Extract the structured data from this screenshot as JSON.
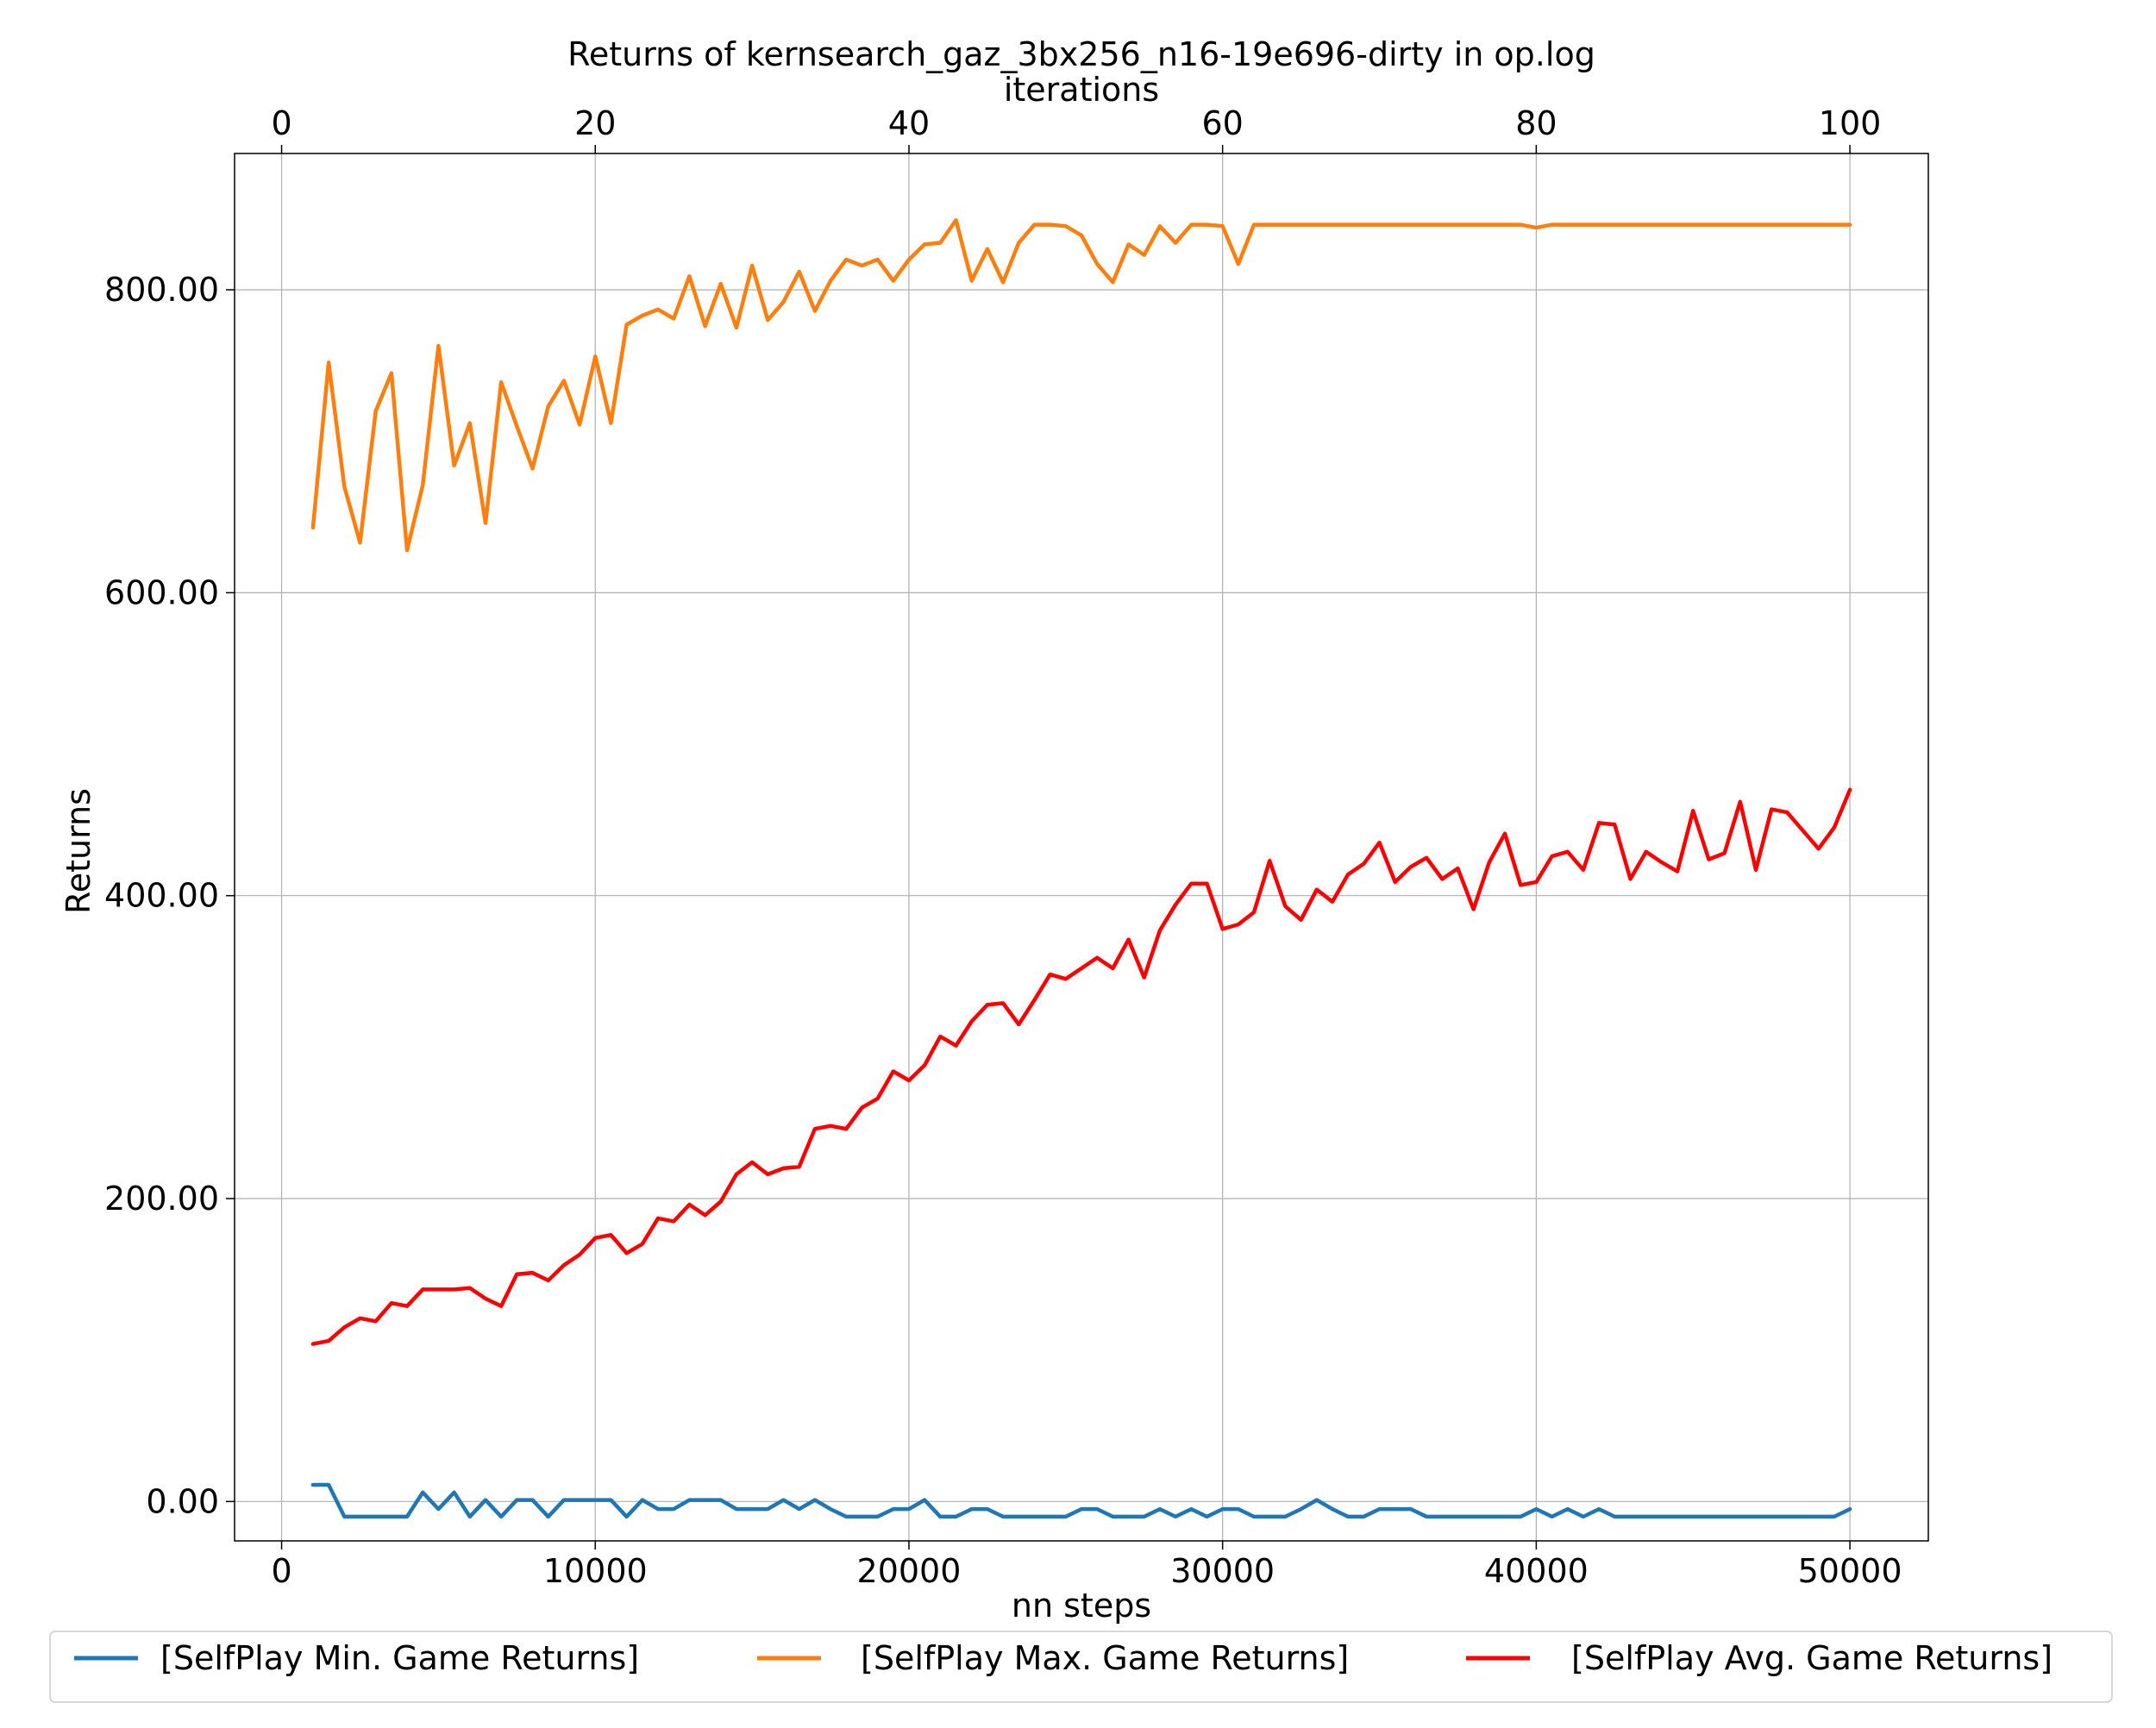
{
  "chart_data": {
    "type": "line",
    "title": "Returns of kernsearch_gaz_3bx256_n16-19e696-dirty in op.log",
    "xlabel": "nn steps",
    "x2label": "iterations",
    "ylabel": "Returns",
    "xlim": [
      -1500,
      52500
    ],
    "x2lim": [
      -3,
      105
    ],
    "ylim": [
      -26,
      890
    ],
    "xticks": [
      0,
      10000,
      20000,
      30000,
      40000,
      50000
    ],
    "x2ticks": [
      0,
      20,
      40,
      60,
      80,
      100
    ],
    "yticks": [
      0,
      200,
      400,
      600,
      800
    ],
    "ytick_labels": [
      "0.00",
      "200.00",
      "400.00",
      "600.00",
      "800.00"
    ],
    "grid": true,
    "legend_position": "bottom, below plot, horizontal",
    "x": [
      1000,
      1500,
      2000,
      2500,
      3000,
      3500,
      4000,
      4500,
      5000,
      5500,
      6000,
      6500,
      7000,
      7500,
      8000,
      8500,
      9000,
      9500,
      10000,
      10500,
      11000,
      11500,
      12000,
      12500,
      13000,
      13500,
      14000,
      14500,
      15000,
      15500,
      16000,
      16500,
      17000,
      17500,
      18000,
      18500,
      19000,
      19500,
      20000,
      20500,
      21000,
      21500,
      22000,
      22500,
      23000,
      23500,
      24000,
      24500,
      25000,
      25500,
      26000,
      26500,
      27000,
      27500,
      28000,
      28500,
      29000,
      29500,
      30000,
      30500,
      31000,
      31500,
      32000,
      32500,
      33000,
      33500,
      34000,
      34500,
      35000,
      35500,
      36000,
      36500,
      37000,
      37500,
      38000,
      38500,
      39000,
      39500,
      40000,
      40500,
      41000,
      41500,
      42000,
      42500,
      43000,
      43500,
      44000,
      44500,
      45000,
      45500,
      46000,
      46500,
      47000,
      47500,
      48000,
      48500,
      49000,
      49500,
      50000
    ],
    "series": [
      {
        "name": "[SelfPlay Min. Game Returns]",
        "color": "#1f77b4",
        "values": [
          11,
          11,
          -10,
          -10,
          -10,
          -10,
          -10,
          6,
          -5,
          6,
          -10,
          1,
          -10,
          1,
          1,
          -10,
          1,
          1,
          1,
          1,
          -10,
          1,
          -5,
          -5,
          1,
          1,
          1,
          -5,
          -5,
          -5,
          1,
          -5,
          1,
          -5,
          -10,
          -10,
          -10,
          -5,
          -5,
          1,
          -10,
          -10,
          -5,
          -5,
          -10,
          -10,
          -10,
          -10,
          -10,
          -5,
          -5,
          -10,
          -10,
          -10,
          -5,
          -10,
          -5,
          -10,
          -5,
          -5,
          -10,
          -10,
          -10,
          -5,
          1,
          -5,
          -10,
          -10,
          -5,
          -5,
          -5,
          -10,
          -10,
          -10,
          -10,
          -10,
          -10,
          -10,
          -5,
          -10,
          -5,
          -10,
          -5,
          -10,
          -10,
          -10,
          -10,
          -10,
          -10,
          -10,
          -10,
          -10,
          -10,
          -10,
          -10,
          -10,
          -10,
          -10,
          -5
        ]
      },
      {
        "name": "[SelfPlay Max. Game Returns]",
        "color": "#ff7f0e",
        "values": [
          643,
          752,
          670,
          633,
          720,
          745,
          628,
          671,
          763,
          684,
          712,
          646,
          739,
          710,
          682,
          723,
          740,
          711,
          756,
          712,
          777,
          783,
          787,
          781,
          809,
          776,
          804,
          775,
          816,
          780,
          792,
          812,
          786,
          806,
          820,
          816,
          820,
          806,
          820,
          830,
          831,
          846,
          806,
          827,
          805,
          831,
          843,
          843,
          842,
          836,
          817,
          805,
          830,
          823,
          842,
          831,
          843,
          843,
          842,
          817,
          843,
          843,
          843,
          843,
          843,
          843,
          843,
          843,
          843,
          843,
          843,
          843,
          843,
          843,
          843,
          843,
          843,
          843,
          841,
          843,
          843,
          843,
          843,
          843,
          843,
          843,
          843,
          843,
          843,
          843,
          843,
          843,
          843,
          843,
          843,
          843,
          843,
          843,
          843
        ]
      },
      {
        "name": "[SelfPlay Avg. Game Returns]",
        "color": "#ff0000",
        "values": [
          104,
          106,
          115,
          121,
          119,
          131,
          129,
          140,
          140,
          140,
          141,
          134,
          129,
          150,
          151,
          146,
          156,
          163,
          174,
          176,
          164,
          170,
          187,
          185,
          196,
          189,
          198,
          216,
          224,
          216,
          220,
          221,
          246,
          248,
          246,
          260,
          266,
          284,
          278,
          288,
          307,
          301,
          317,
          328,
          329,
          315,
          331,
          348,
          345,
          352,
          359,
          352,
          371,
          346,
          377,
          394,
          408,
          408,
          378,
          381,
          389,
          423,
          393,
          384,
          404,
          396,
          414,
          421,
          435,
          409,
          419,
          425,
          411,
          418,
          391,
          422,
          441,
          407,
          409,
          426,
          429,
          417,
          448,
          447,
          411,
          429,
          422,
          416,
          456,
          424,
          428,
          462,
          417,
          457,
          455,
          443,
          431,
          445,
          470
        ]
      }
    ]
  }
}
